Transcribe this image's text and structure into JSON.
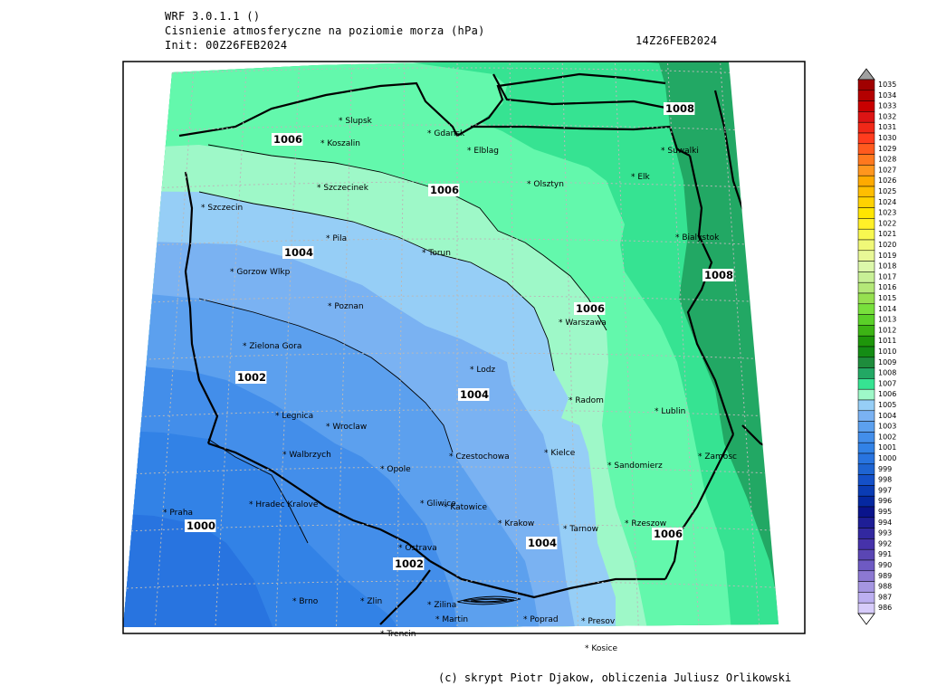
{
  "header": {
    "model": "WRF 3.0.1.1 ()",
    "variable": "Cisnienie atmosferyczne na poziomie morza (hPa)",
    "init": "Init: 00Z26FEB2024",
    "valid": "14Z26FEB2024"
  },
  "footer": "(c) skrypt Piotr Djakow, obliczenia Juliusz Orlikowski",
  "map": {
    "cities": [
      {
        "name": "Slupsk"
      },
      {
        "name": "Koszalin"
      },
      {
        "name": "Gdansk"
      },
      {
        "name": "Elblag"
      },
      {
        "name": "Suwalki"
      },
      {
        "name": "Elk"
      },
      {
        "name": "Olsztyn"
      },
      {
        "name": "Szczecinek"
      },
      {
        "name": "Szczecin"
      },
      {
        "name": "Pila"
      },
      {
        "name": "Torun"
      },
      {
        "name": "Bialystok"
      },
      {
        "name": "Gorzow Wlkp"
      },
      {
        "name": "Poznan"
      },
      {
        "name": "Warszawa"
      },
      {
        "name": "Zielona Gora"
      },
      {
        "name": "Lodz"
      },
      {
        "name": "Radom"
      },
      {
        "name": "Lublin"
      },
      {
        "name": "Legnica"
      },
      {
        "name": "Wroclaw"
      },
      {
        "name": "Kielce"
      },
      {
        "name": "Czestochowa"
      },
      {
        "name": "Walbrzych"
      },
      {
        "name": "Opole"
      },
      {
        "name": "Sandomierz"
      },
      {
        "name": "Zamosc"
      },
      {
        "name": "Gliwice"
      },
      {
        "name": "Katowice"
      },
      {
        "name": "Hradec Kralove"
      },
      {
        "name": "Krakow"
      },
      {
        "name": "Praha"
      },
      {
        "name": "Tarnow"
      },
      {
        "name": "Rzeszow"
      },
      {
        "name": "Ostrava"
      },
      {
        "name": "Brno"
      },
      {
        "name": "Zlin"
      },
      {
        "name": "Zilina"
      },
      {
        "name": "Martin"
      },
      {
        "name": "Poprad"
      },
      {
        "name": "Presov"
      },
      {
        "name": "Trencin"
      },
      {
        "name": "Kosice"
      }
    ],
    "contour_labels": [
      {
        "text": "1008"
      },
      {
        "text": "1008"
      },
      {
        "text": "1006"
      },
      {
        "text": "1006"
      },
      {
        "text": "1006"
      },
      {
        "text": "1006"
      },
      {
        "text": "1004"
      },
      {
        "text": "1004"
      },
      {
        "text": "1004"
      },
      {
        "text": "1002"
      },
      {
        "text": "1002"
      },
      {
        "text": "1000"
      }
    ],
    "fill_colors": {
      "above_1008": "#22a864",
      "1007_1008": "#36e392",
      "1006_1007": "#63f8ac",
      "1005_1006": "#9ef8c8",
      "1004_1005": "#96cef6",
      "1003_1004": "#7ab2f2",
      "1002_1003": "#5ca0ee",
      "1001_1002": "#438eea",
      "1000_1001": "#3282e6",
      "below_1000": "#2874e0"
    }
  },
  "colorbar": {
    "levels": [
      "1035",
      "1034",
      "1033",
      "1032",
      "1031",
      "1030",
      "1029",
      "1028",
      "1027",
      "1026",
      "1025",
      "1024",
      "1023",
      "1022",
      "1021",
      "1020",
      "1019",
      "1018",
      "1017",
      "1016",
      "1015",
      "1014",
      "1013",
      "1012",
      "1011",
      "1010",
      "1009",
      "1008",
      "1007",
      "1006",
      "1005",
      "1004",
      "1003",
      "1002",
      "1001",
      "1000",
      "999",
      "998",
      "997",
      "996",
      "995",
      "994",
      "993",
      "992",
      "991",
      "990",
      "989",
      "988",
      "987",
      "986"
    ],
    "colors": [
      "#a00000",
      "#b40000",
      "#c80000",
      "#dc1414",
      "#f02818",
      "#ff3c1e",
      "#ff5a1e",
      "#ff781e",
      "#ff961e",
      "#ffaa00",
      "#ffbe00",
      "#ffd200",
      "#ffe600",
      "#fff028",
      "#f8f850",
      "#f0f878",
      "#e8f896",
      "#dcf8aa",
      "#c8f096",
      "#b4e878",
      "#96e050",
      "#78e03c",
      "#5ad028",
      "#3cb414",
      "#1e960a",
      "#148c14",
      "#1e8c3c",
      "#22a864",
      "#36e392",
      "#9ef8c8",
      "#96cef6",
      "#7ab2f2",
      "#5ca0ee",
      "#438eea",
      "#3282e6",
      "#2874e0",
      "#1e64d2",
      "#1450c8",
      "#0a3cb4",
      "#0528a0",
      "#0a148c",
      "#1e1e96",
      "#3228a0",
      "#4632aa",
      "#5a46b4",
      "#6e5ac3",
      "#8c78d2",
      "#a596e1",
      "#bcaff0",
      "#d7ccfa"
    ],
    "cap_top_color": "#a0a0a0",
    "cap_bottom_color": "#ffffff"
  }
}
